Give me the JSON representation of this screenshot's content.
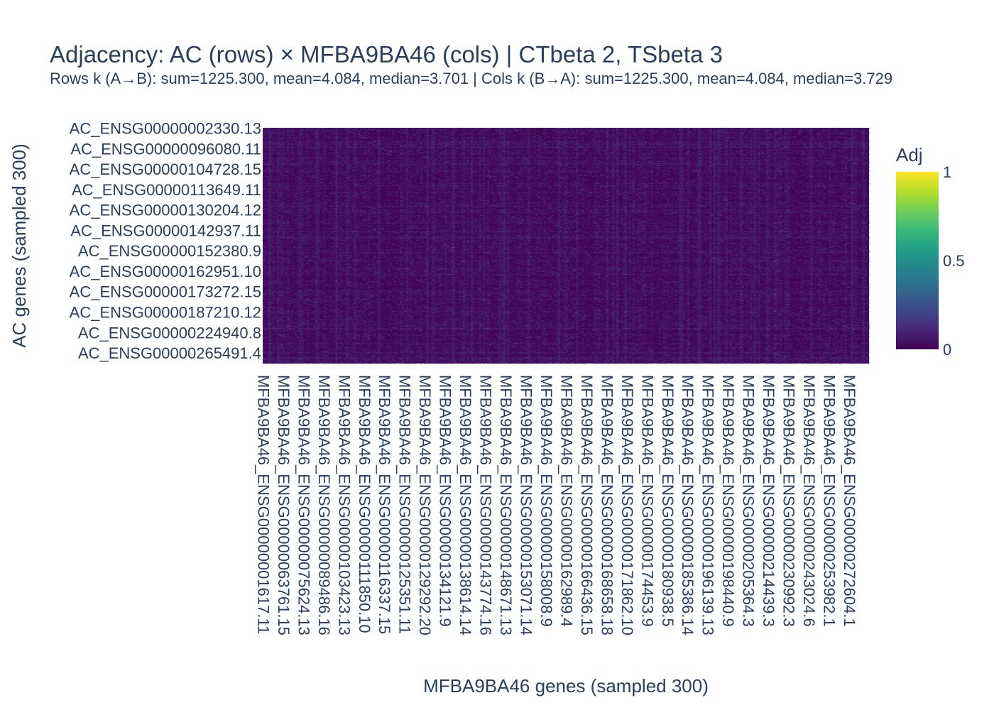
{
  "chart_data": {
    "type": "heatmap",
    "title": "Adjacency: AC (rows) × MFBA9BA46 (cols) | CTbeta 2, TSbeta 3",
    "subtitle": "Rows k (A→B): sum=1225.300, mean=4.084, median=3.701 | Cols k (B→A): sum=1225.300, mean=4.084, median=3.729",
    "xlabel": "MFBA9BA46 genes (sampled 300)",
    "ylabel": "AC genes (sampled 300)",
    "n_rows": 300,
    "n_cols": 300,
    "row_tick_labels": [
      "AC_ENSG00000002330.13",
      "AC_ENSG00000096080.11",
      "AC_ENSG00000104728.15",
      "AC_ENSG00000113649.11",
      "AC_ENSG00000130204.12",
      "AC_ENSG00000142937.11",
      "AC_ENSG00000152380.9",
      "AC_ENSG00000162951.10",
      "AC_ENSG00000173272.15",
      "AC_ENSG00000187210.12",
      "AC_ENSG00000224940.8",
      "AC_ENSG00000265491.4"
    ],
    "col_tick_labels": [
      "MFBA9BA46_ENSG00000001617.11",
      "MFBA9BA46_ENSG00000063761.15",
      "MFBA9BA46_ENSG00000075624.13",
      "MFBA9BA46_ENSG00000089486.16",
      "MFBA9BA46_ENSG00000103423.13",
      "MFBA9BA46_ENSG00000111850.10",
      "MFBA9BA46_ENSG00000116337.15",
      "MFBA9BA46_ENSG00000125351.11",
      "MFBA9BA46_ENSG00000129292.20",
      "MFBA9BA46_ENSG00000134121.9",
      "MFBA9BA46_ENSG00000138614.14",
      "MFBA9BA46_ENSG00000143774.16",
      "MFBA9BA46_ENSG00000148671.13",
      "MFBA9BA46_ENSG00000153071.14",
      "MFBA9BA46_ENSG00000158008.9",
      "MFBA9BA46_ENSG00000162989.4",
      "MFBA9BA46_ENSG00000166436.15",
      "MFBA9BA46_ENSG00000168658.18",
      "MFBA9BA46_ENSG00000171862.10",
      "MFBA9BA46_ENSG00000174453.9",
      "MFBA9BA46_ENSG00000180938.5",
      "MFBA9BA46_ENSG00000185386.14",
      "MFBA9BA46_ENSG00000196139.13",
      "MFBA9BA46_ENSG00000198440.9",
      "MFBA9BA46_ENSG00000205364.3",
      "MFBA9BA46_ENSG00000214439.3",
      "MFBA9BA46_ENSG00000230992.3",
      "MFBA9BA46_ENSG00000243024.6",
      "MFBA9BA46_ENSG00000253982.1",
      "MFBA9BA46_ENSG00000272604.1"
    ],
    "row_tick_every": 26,
    "col_tick_every": 10,
    "value_range": [
      0,
      1
    ],
    "typical_value_range": [
      0,
      0.12
    ],
    "colorscale": "Viridis",
    "colorbar": {
      "title": "Adj",
      "tick_labels": [
        "1",
        "0.5",
        "0"
      ],
      "tick_values": [
        1,
        0.5,
        0
      ]
    },
    "legend": "colorbar right"
  }
}
